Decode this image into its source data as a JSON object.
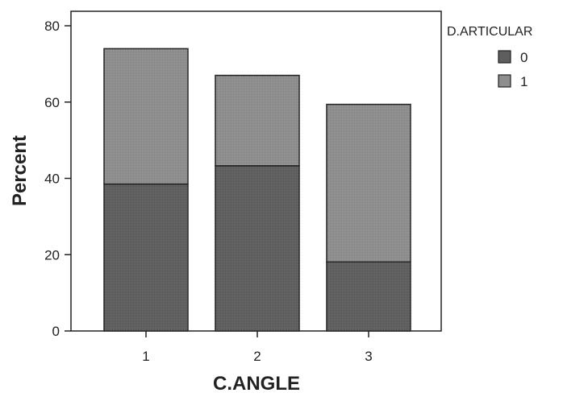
{
  "chart_data": {
    "type": "bar",
    "stacked": true,
    "xlabel": "C.ANGLE",
    "ylabel": "Percent",
    "categories": [
      "1",
      "2",
      "3"
    ],
    "ylim": [
      0,
      80
    ],
    "yticks": [
      0,
      20,
      40,
      60,
      80
    ],
    "legend": {
      "title": "D.ARTICULAR",
      "position": "top-right"
    },
    "series": [
      {
        "name": "0",
        "values": [
          38.5,
          43.3,
          18.1
        ],
        "color": "#5e5e5e"
      },
      {
        "name": "1",
        "values": [
          35.5,
          23.7,
          41.3
        ],
        "color": "#8e8e8e"
      }
    ],
    "grid": false
  }
}
